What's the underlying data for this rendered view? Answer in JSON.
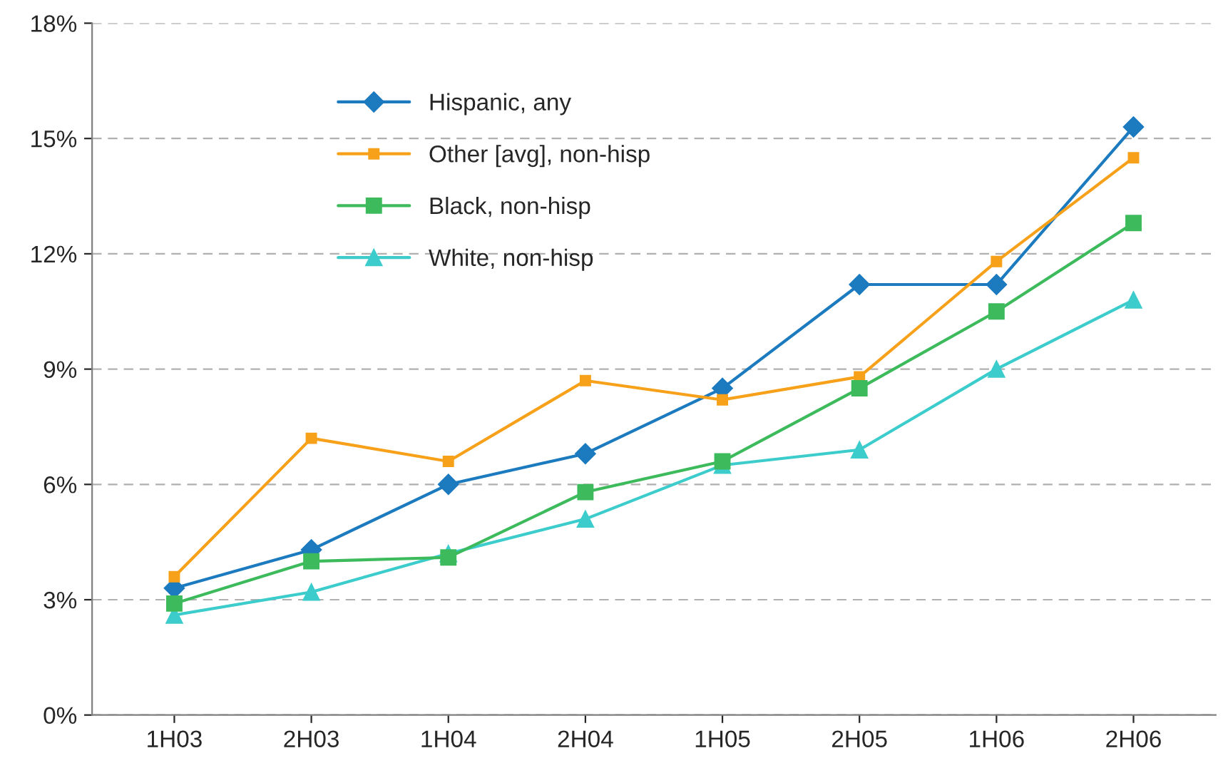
{
  "chart_data": {
    "type": "line",
    "categories": [
      "1H03",
      "2H03",
      "1H04",
      "2H04",
      "1H05",
      "2H05",
      "1H06",
      "2H06"
    ],
    "series": [
      {
        "name": "Hispanic, any",
        "color": "#1c7abf",
        "marker": "diamond",
        "values": [
          3.3,
          4.3,
          6.0,
          6.8,
          8.5,
          11.2,
          11.2,
          15.3
        ]
      },
      {
        "name": "Other [avg], non-hisp",
        "color": "#f7a11a",
        "marker": "square",
        "values": [
          3.6,
          7.2,
          6.6,
          8.7,
          8.2,
          8.8,
          11.8,
          14.5
        ]
      },
      {
        "name": "Black, non-hisp",
        "color": "#3dbb5c",
        "marker": "square",
        "values": [
          2.9,
          4.0,
          4.1,
          5.8,
          6.6,
          8.5,
          10.5,
          12.8
        ]
      },
      {
        "name": "White, non-hisp",
        "color": "#3ccccc",
        "marker": "triangle",
        "values": [
          2.6,
          3.2,
          4.2,
          5.1,
          6.5,
          6.9,
          9.0,
          10.8
        ]
      }
    ],
    "ylim": [
      0,
      18
    ],
    "yticks": [
      {
        "value": 0,
        "label": "0%"
      },
      {
        "value": 3,
        "label": "3%"
      },
      {
        "value": 6,
        "label": "6%"
      },
      {
        "value": 9,
        "label": "9%"
      },
      {
        "value": 12,
        "label": "12%"
      },
      {
        "value": 15,
        "label": "15%"
      },
      {
        "value": 18,
        "label": "18%"
      }
    ],
    "grid": "y",
    "legend": "top left",
    "line_style": "solid"
  }
}
